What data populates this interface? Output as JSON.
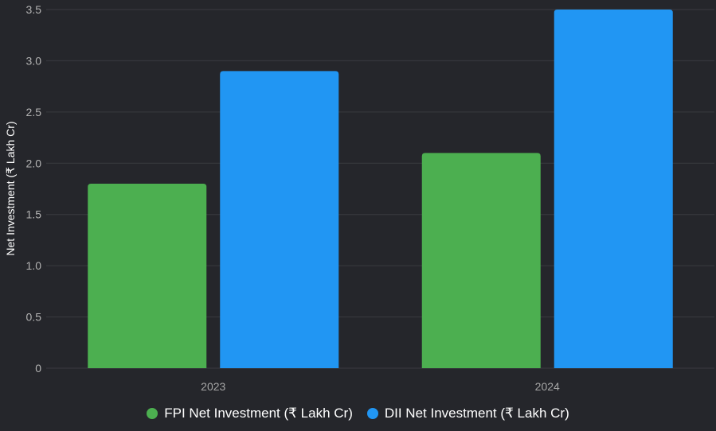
{
  "chart_data": {
    "type": "bar",
    "categories": [
      "2023",
      "2024"
    ],
    "series": [
      {
        "name": "FPI Net Investment (₹ Lakh Cr)",
        "values": [
          1.8,
          2.1
        ],
        "color": "#4caf50"
      },
      {
        "name": "DII Net Investment (₹ Lakh Cr)",
        "values": [
          2.9,
          3.5
        ],
        "color": "#2196f3"
      }
    ],
    "ylabel": "Net Investment (₹ Lakh Cr)",
    "xlabel": "",
    "ylim": [
      0,
      3.5
    ],
    "yticks": [
      "0",
      "0.5",
      "1.0",
      "1.5",
      "2.0",
      "2.5",
      "3.0",
      "3.5"
    ],
    "grid": true,
    "legend_position": "bottom"
  },
  "colors": {
    "background": "#25262b",
    "grid": "#3a3b40"
  }
}
